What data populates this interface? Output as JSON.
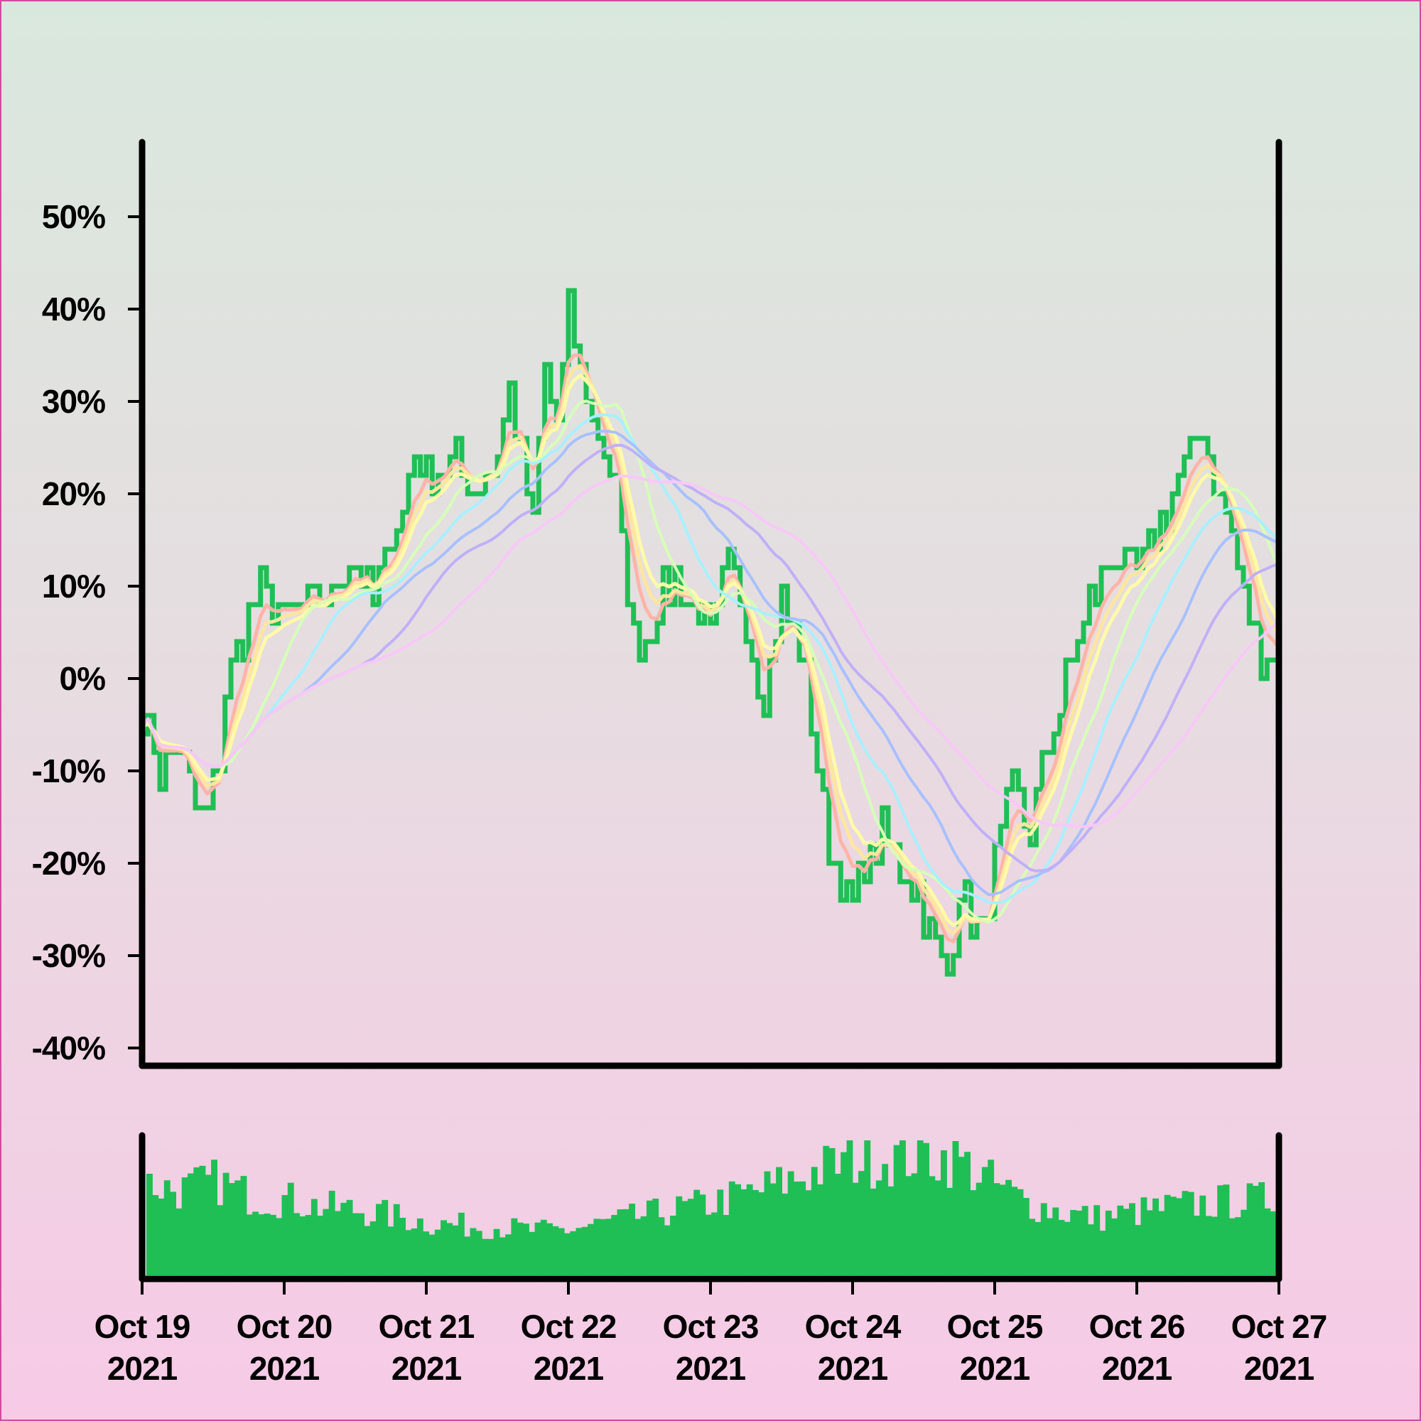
{
  "chart_data": {
    "type": "line",
    "title": "",
    "xlabel": "",
    "ylabel": "",
    "ylim": [
      -40,
      55
    ],
    "yticks": [
      {
        "value": -40,
        "label": "-40%"
      },
      {
        "value": -30,
        "label": "-30%"
      },
      {
        "value": -20,
        "label": "-20%"
      },
      {
        "value": -10,
        "label": "-10%"
      },
      {
        "value": 0,
        "label": "0%"
      },
      {
        "value": 10,
        "label": "10%"
      },
      {
        "value": 20,
        "label": "20%"
      },
      {
        "value": 30,
        "label": "30%"
      },
      {
        "value": 40,
        "label": "40%"
      },
      {
        "value": 50,
        "label": "50%"
      }
    ],
    "xrange": [
      "2021-10-19",
      "2021-10-27"
    ],
    "xticks": [
      {
        "date": "2021-10-19",
        "line1": "Oct 19",
        "line2": "2021"
      },
      {
        "date": "2021-10-20",
        "line1": "Oct 20",
        "line2": "2021"
      },
      {
        "date": "2021-10-21",
        "line1": "Oct 21",
        "line2": "2021"
      },
      {
        "date": "2021-10-22",
        "line1": "Oct 22",
        "line2": "2021"
      },
      {
        "date": "2021-10-23",
        "line1": "Oct 23",
        "line2": "2021"
      },
      {
        "date": "2021-10-24",
        "line1": "Oct 24",
        "line2": "2021"
      },
      {
        "date": "2021-10-25",
        "line1": "Oct 25",
        "line2": "2021"
      },
      {
        "date": "2021-10-26",
        "line1": "Oct 26",
        "line2": "2021"
      },
      {
        "date": "2021-10-27",
        "line1": "Oct 27",
        "line2": "2021"
      }
    ],
    "grid": false,
    "legend": "none",
    "price_series": {
      "color": "#1fbf55",
      "points": [
        [
          "2021-10-19T00:00",
          -3
        ],
        [
          "2021-10-19T03:00",
          -10
        ],
        [
          "2021-10-19T06:00",
          -7
        ],
        [
          "2021-10-19T09:00",
          -14
        ],
        [
          "2021-10-19T11:00",
          -15
        ],
        [
          "2021-10-19T13:00",
          -9
        ],
        [
          "2021-10-19T14:00",
          -2
        ],
        [
          "2021-10-19T17:00",
          5
        ],
        [
          "2021-10-19T20:00",
          10
        ],
        [
          "2021-10-20T00:00",
          6
        ],
        [
          "2021-10-20T04:00",
          8
        ],
        [
          "2021-10-20T08:00",
          9
        ],
        [
          "2021-10-20T12:00",
          13
        ],
        [
          "2021-10-20T15:00",
          8
        ],
        [
          "2021-10-20T18:00",
          15
        ],
        [
          "2021-10-20T20:00",
          18
        ],
        [
          "2021-10-20T22:00",
          24
        ],
        [
          "2021-10-21T01:00",
          22
        ],
        [
          "2021-10-21T04:00",
          24
        ],
        [
          "2021-10-21T08:00",
          21
        ],
        [
          "2021-10-21T12:00",
          24
        ],
        [
          "2021-10-21T14:00",
          31
        ],
        [
          "2021-10-21T16:00",
          25
        ],
        [
          "2021-10-21T18:00",
          17
        ],
        [
          "2021-10-21T20:00",
          33
        ],
        [
          "2021-10-21T22:00",
          28
        ],
        [
          "2021-10-22T00:00",
          40
        ],
        [
          "2021-10-22T02:00",
          34
        ],
        [
          "2021-10-22T04:00",
          28
        ],
        [
          "2021-10-22T06:00",
          24
        ],
        [
          "2021-10-22T08:00",
          20
        ],
        [
          "2021-10-22T09:00",
          14
        ],
        [
          "2021-10-22T11:00",
          5
        ],
        [
          "2021-10-22T13:00",
          4
        ],
        [
          "2021-10-22T15:00",
          8
        ],
        [
          "2021-10-22T18:00",
          11
        ],
        [
          "2021-10-22T21:00",
          8
        ],
        [
          "2021-10-23T00:00",
          4
        ],
        [
          "2021-10-23T03:00",
          13
        ],
        [
          "2021-10-23T06:00",
          6
        ],
        [
          "2021-10-23T09:00",
          -2
        ],
        [
          "2021-10-23T12:00",
          8
        ],
        [
          "2021-10-23T14:00",
          6
        ],
        [
          "2021-10-23T16:00",
          0
        ],
        [
          "2021-10-23T18:00",
          -10
        ],
        [
          "2021-10-23T20:00",
          -19
        ],
        [
          "2021-10-23T22:00",
          -22
        ],
        [
          "2021-10-24T00:00",
          -24
        ],
        [
          "2021-10-24T02:00",
          -20
        ],
        [
          "2021-10-24T05:00",
          -17
        ],
        [
          "2021-10-24T08:00",
          -21
        ],
        [
          "2021-10-24T11:00",
          -23
        ],
        [
          "2021-10-24T14:00",
          -29
        ],
        [
          "2021-10-24T16:00",
          -31
        ],
        [
          "2021-10-24T18:00",
          -23
        ],
        [
          "2021-10-24T20:00",
          -26
        ],
        [
          "2021-10-24T22:00",
          -28
        ],
        [
          "2021-10-25T00:00",
          -20
        ],
        [
          "2021-10-25T03:00",
          -12
        ],
        [
          "2021-10-25T06:00",
          -16
        ],
        [
          "2021-10-25T09:00",
          -8
        ],
        [
          "2021-10-25T12:00",
          0
        ],
        [
          "2021-10-25T16:00",
          8
        ],
        [
          "2021-10-25T20:00",
          13
        ],
        [
          "2021-10-26T00:00",
          11
        ],
        [
          "2021-10-26T04:00",
          17
        ],
        [
          "2021-10-26T08:00",
          22
        ],
        [
          "2021-10-26T11:00",
          27
        ],
        [
          "2021-10-26T13:00",
          22
        ],
        [
          "2021-10-26T15:00",
          18
        ],
        [
          "2021-10-26T17:00",
          12
        ],
        [
          "2021-10-26T19:00",
          7
        ],
        [
          "2021-10-26T21:00",
          2
        ],
        [
          "2021-10-27T00:00",
          3
        ],
        [
          "2021-10-27T03:00",
          0
        ],
        [
          "2021-10-27T06:00",
          7
        ],
        [
          "2021-10-27T09:00",
          5
        ],
        [
          "2021-10-27T12:00",
          9
        ],
        [
          "2021-10-27T15:00",
          8
        ],
        [
          "2021-10-27T19:00",
          5
        ],
        [
          "2021-10-27T21:00",
          9
        ],
        [
          "2021-10-27T23:00",
          -4
        ]
      ]
    },
    "moving_average_colors": [
      "#ffb4a8",
      "#ffe6a0",
      "#fffaa8",
      "#d6ffb8",
      "#a8f0ff",
      "#a8c0ff",
      "#c0b0f8",
      "#f8c8f8"
    ],
    "volume": {
      "color": "#1fbf55",
      "points": [
        [
          "2021-10-19T00:00",
          70
        ],
        [
          "2021-10-19T06:00",
          65
        ],
        [
          "2021-10-19T12:00",
          72
        ],
        [
          "2021-10-19T18:00",
          60
        ],
        [
          "2021-10-20T00:00",
          58
        ],
        [
          "2021-10-20T06:00",
          52
        ],
        [
          "2021-10-20T12:00",
          50
        ],
        [
          "2021-10-20T18:00",
          45
        ],
        [
          "2021-10-21T00:00",
          40
        ],
        [
          "2021-10-21T06:00",
          38
        ],
        [
          "2021-10-21T12:00",
          37
        ],
        [
          "2021-10-21T18:00",
          34
        ],
        [
          "2021-10-22T00:00",
          35
        ],
        [
          "2021-10-22T06:00",
          40
        ],
        [
          "2021-10-22T12:00",
          45
        ],
        [
          "2021-10-22T18:00",
          50
        ],
        [
          "2021-10-23T00:00",
          55
        ],
        [
          "2021-10-23T06:00",
          62
        ],
        [
          "2021-10-23T12:00",
          70
        ],
        [
          "2021-10-23T18:00",
          80
        ],
        [
          "2021-10-24T00:00",
          88
        ],
        [
          "2021-10-24T06:00",
          90
        ],
        [
          "2021-10-24T12:00",
          92
        ],
        [
          "2021-10-24T18:00",
          88
        ],
        [
          "2021-10-25T00:00",
          70
        ],
        [
          "2021-10-25T06:00",
          55
        ],
        [
          "2021-10-25T12:00",
          48
        ],
        [
          "2021-10-25T18:00",
          44
        ],
        [
          "2021-10-26T00:00",
          48
        ],
        [
          "2021-10-26T06:00",
          52
        ],
        [
          "2021-10-26T12:00",
          55
        ],
        [
          "2021-10-26T18:00",
          57
        ],
        [
          "2021-10-27T00:00",
          58
        ],
        [
          "2021-10-27T06:00",
          57
        ],
        [
          "2021-10-27T12:00",
          55
        ],
        [
          "2021-10-27T18:00",
          52
        ],
        [
          "2021-10-27T23:59",
          40
        ]
      ]
    }
  }
}
